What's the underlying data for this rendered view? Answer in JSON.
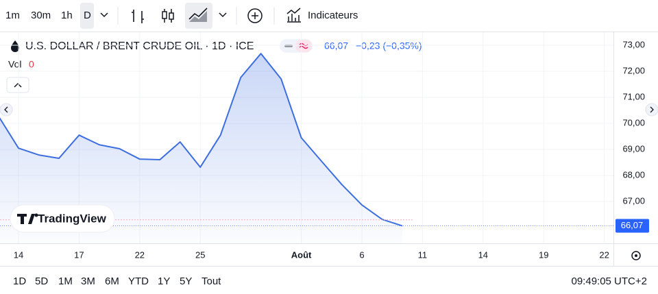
{
  "toolbar": {
    "intervals": [
      "1m",
      "30m",
      "1h",
      "D"
    ],
    "indicators": "Indicateurs"
  },
  "header": {
    "symbol": "U.S. DOLLAR / BRENT CRUDE OIL · 1D · ICE",
    "vol_label": "Vol",
    "vol_value": "0",
    "price": "66,07",
    "change": "−0,23 (−0,35%)"
  },
  "logo": "TradingView",
  "chart_data": {
    "type": "area",
    "color": "#3d6ee0",
    "grid": true,
    "categories": [
      null,
      "14",
      null,
      null,
      "17",
      null,
      null,
      "22",
      null,
      null,
      "25",
      null,
      null,
      null,
      null,
      "Août",
      null,
      null,
      "6",
      null,
      null,
      "11",
      null,
      null,
      "14",
      null,
      null,
      "19",
      null,
      null,
      "22"
    ],
    "values": [
      70.29,
      69.05,
      68.79,
      68.66,
      69.55,
      69.18,
      69.03,
      68.63,
      68.61,
      69.29,
      68.32,
      69.55,
      71.76,
      72.68,
      71.71,
      69.45,
      68.55,
      67.66,
      66.87,
      66.32,
      66.07,
      null,
      null,
      null,
      null,
      null,
      null,
      null,
      null,
      null,
      null
    ],
    "ylim": [
      65.4,
      73.5
    ],
    "yticks": [
      {
        "value": 67,
        "label": "67,00"
      },
      {
        "value": 68,
        "label": "68,00"
      },
      {
        "value": 69,
        "label": "69,00"
      },
      {
        "value": 70,
        "label": "70,00"
      },
      {
        "value": 71,
        "label": "71,00"
      },
      {
        "value": 72,
        "label": "72,00"
      },
      {
        "value": 73,
        "label": "73,00"
      }
    ],
    "previous_close": 66.3,
    "last": {
      "value": 66.07,
      "label": "66,07"
    }
  },
  "footer": {
    "ranges": [
      "1D",
      "5D",
      "1M",
      "3M",
      "6M",
      "YTD",
      "1Y",
      "5Y",
      "Tout"
    ],
    "time": "09:49:05 UTC+2"
  }
}
